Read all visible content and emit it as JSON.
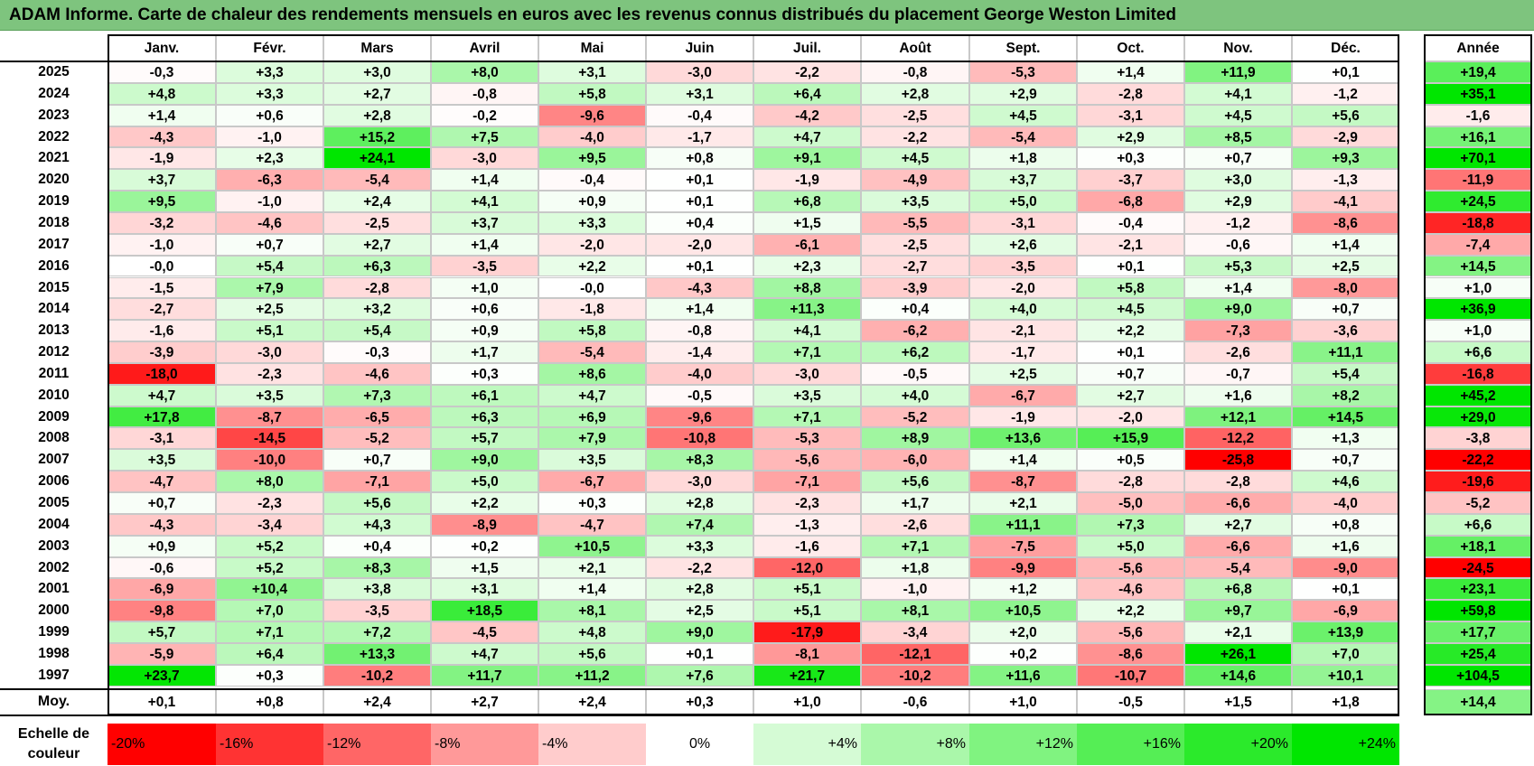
{
  "title": "ADAM Informe. Carte de chaleur des rendements mensuels en euros avec les revenus connus distribués du placement George Weston Limited",
  "colors": {
    "title_bg": "#7ec47e",
    "negative": "#ff0000",
    "positive": "#00e600",
    "neutral": "#ffffff"
  },
  "chart_data": {
    "type": "heatmap",
    "months": [
      "Janv.",
      "Févr.",
      "Mars",
      "Avril",
      "Mai",
      "Juin",
      "Juil.",
      "Août",
      "Sept.",
      "Oct.",
      "Nov.",
      "Déc."
    ],
    "annual_header": "Année",
    "rows": [
      {
        "year": "2025",
        "values": [
          "-0,3",
          "+3,3",
          "+3,0",
          "+8,0",
          "+3,1",
          "-3,0",
          "-2,2",
          "-0,8",
          "-5,3",
          "+1,4",
          "+11,9",
          "+0,1"
        ],
        "annual": "+19,4"
      },
      {
        "year": "2024",
        "values": [
          "+4,8",
          "+3,3",
          "+2,7",
          "-0,8",
          "+5,8",
          "+3,1",
          "+6,4",
          "+2,8",
          "+2,9",
          "-2,8",
          "+4,1",
          "-1,2"
        ],
        "annual": "+35,1"
      },
      {
        "year": "2023",
        "values": [
          "+1,4",
          "+0,6",
          "+2,8",
          "-0,2",
          "-9,6",
          "-0,4",
          "-4,2",
          "-2,5",
          "+4,5",
          "-3,1",
          "+4,5",
          "+5,6"
        ],
        "annual": "-1,6"
      },
      {
        "year": "2022",
        "values": [
          "-4,3",
          "-1,0",
          "+15,2",
          "+7,5",
          "-4,0",
          "-1,7",
          "+4,7",
          "-2,2",
          "-5,4",
          "+2,9",
          "+8,5",
          "-2,9"
        ],
        "annual": "+16,1"
      },
      {
        "year": "2021",
        "values": [
          "-1,9",
          "+2,3",
          "+24,1",
          "-3,0",
          "+9,5",
          "+0,8",
          "+9,1",
          "+4,5",
          "+1,8",
          "+0,3",
          "+0,7",
          "+9,3"
        ],
        "annual": "+70,1"
      },
      {
        "year": "2020",
        "values": [
          "+3,7",
          "-6,3",
          "-5,4",
          "+1,4",
          "-0,4",
          "+0,1",
          "-1,9",
          "-4,9",
          "+3,7",
          "-3,7",
          "+3,0",
          "-1,3"
        ],
        "annual": "-11,9"
      },
      {
        "year": "2019",
        "values": [
          "+9,5",
          "-1,0",
          "+2,4",
          "+4,1",
          "+0,9",
          "+0,1",
          "+6,8",
          "+3,5",
          "+5,0",
          "-6,8",
          "+2,9",
          "-4,1"
        ],
        "annual": "+24,5"
      },
      {
        "year": "2018",
        "values": [
          "-3,2",
          "-4,6",
          "-2,5",
          "+3,7",
          "+3,3",
          "+0,4",
          "+1,5",
          "-5,5",
          "-3,1",
          "-0,4",
          "-1,2",
          "-8,6"
        ],
        "annual": "-18,8"
      },
      {
        "year": "2017",
        "values": [
          "-1,0",
          "+0,7",
          "+2,7",
          "+1,4",
          "-2,0",
          "-2,0",
          "-6,1",
          "-2,5",
          "+2,6",
          "-2,1",
          "-0,6",
          "+1,4"
        ],
        "annual": "-7,4"
      },
      {
        "year": "2016",
        "values": [
          "-0,0",
          "+5,4",
          "+6,3",
          "-3,5",
          "+2,2",
          "+0,1",
          "+2,3",
          "-2,7",
          "-3,5",
          "+0,1",
          "+5,3",
          "+2,5"
        ],
        "annual": "+14,5"
      },
      {
        "year": "2015",
        "values": [
          "-1,5",
          "+7,9",
          "-2,8",
          "+1,0",
          "-0,0",
          "-4,3",
          "+8,8",
          "-3,9",
          "-2,0",
          "+5,8",
          "+1,4",
          "-8,0"
        ],
        "annual": "+1,0"
      },
      {
        "year": "2014",
        "values": [
          "-2,7",
          "+2,5",
          "+3,2",
          "+0,6",
          "-1,8",
          "+1,4",
          "+11,3",
          "+0,4",
          "+4,0",
          "+4,5",
          "+9,0",
          "+0,7"
        ],
        "annual": "+36,9"
      },
      {
        "year": "2013",
        "values": [
          "-1,6",
          "+5,1",
          "+5,4",
          "+0,9",
          "+5,8",
          "-0,8",
          "+4,1",
          "-6,2",
          "-2,1",
          "+2,2",
          "-7,3",
          "-3,6"
        ],
        "annual": "+1,0"
      },
      {
        "year": "2012",
        "values": [
          "-3,9",
          "-3,0",
          "-0,3",
          "+1,7",
          "-5,4",
          "-1,4",
          "+7,1",
          "+6,2",
          "-1,7",
          "+0,1",
          "-2,6",
          "+11,1"
        ],
        "annual": "+6,6"
      },
      {
        "year": "2011",
        "values": [
          "-18,0",
          "-2,3",
          "-4,6",
          "+0,3",
          "+8,6",
          "-4,0",
          "-3,0",
          "-0,5",
          "+2,5",
          "+0,7",
          "-0,7",
          "+5,4"
        ],
        "annual": "-16,8"
      },
      {
        "year": "2010",
        "values": [
          "+4,7",
          "+3,5",
          "+7,3",
          "+6,1",
          "+4,7",
          "-0,5",
          "+3,5",
          "+4,0",
          "-6,7",
          "+2,7",
          "+1,6",
          "+8,2"
        ],
        "annual": "+45,2"
      },
      {
        "year": "2009",
        "values": [
          "+17,8",
          "-8,7",
          "-6,5",
          "+6,3",
          "+6,9",
          "-9,6",
          "+7,1",
          "-5,2",
          "-1,9",
          "-2,0",
          "+12,1",
          "+14,5"
        ],
        "annual": "+29,0"
      },
      {
        "year": "2008",
        "values": [
          "-3,1",
          "-14,5",
          "-5,2",
          "+5,7",
          "+7,9",
          "-10,8",
          "-5,3",
          "+8,9",
          "+13,6",
          "+15,9",
          "-12,2",
          "+1,3"
        ],
        "annual": "-3,8"
      },
      {
        "year": "2007",
        "values": [
          "+3,5",
          "-10,0",
          "+0,7",
          "+9,0",
          "+3,5",
          "+8,3",
          "-5,6",
          "-6,0",
          "+1,4",
          "+0,5",
          "-25,8",
          "+0,7"
        ],
        "annual": "-22,2"
      },
      {
        "year": "2006",
        "values": [
          "-4,7",
          "+8,0",
          "-7,1",
          "+5,0",
          "-6,7",
          "-3,0",
          "-7,1",
          "+5,6",
          "-8,7",
          "-2,8",
          "-2,8",
          "+4,6"
        ],
        "annual": "-19,6"
      },
      {
        "year": "2005",
        "values": [
          "+0,7",
          "-2,3",
          "+5,6",
          "+2,2",
          "+0,3",
          "+2,8",
          "-2,3",
          "+1,7",
          "+2,1",
          "-5,0",
          "-6,6",
          "-4,0"
        ],
        "annual": "-5,2"
      },
      {
        "year": "2004",
        "values": [
          "-4,3",
          "-3,4",
          "+4,3",
          "-8,9",
          "-4,7",
          "+7,4",
          "-1,3",
          "-2,6",
          "+11,1",
          "+7,3",
          "+2,7",
          "+0,8"
        ],
        "annual": "+6,6"
      },
      {
        "year": "2003",
        "values": [
          "+0,9",
          "+5,2",
          "+0,4",
          "+0,2",
          "+10,5",
          "+3,3",
          "-1,6",
          "+7,1",
          "-7,5",
          "+5,0",
          "-6,6",
          "+1,6"
        ],
        "annual": "+18,1"
      },
      {
        "year": "2002",
        "values": [
          "-0,6",
          "+5,2",
          "+8,3",
          "+1,5",
          "+2,1",
          "-2,2",
          "-12,0",
          "+1,8",
          "-9,9",
          "-5,6",
          "-5,4",
          "-9,0"
        ],
        "annual": "-24,5"
      },
      {
        "year": "2001",
        "values": [
          "-6,9",
          "+10,4",
          "+3,8",
          "+3,1",
          "+1,4",
          "+2,8",
          "+5,1",
          "-1,0",
          "+1,2",
          "-4,6",
          "+6,8",
          "+0,1"
        ],
        "annual": "+23,1"
      },
      {
        "year": "2000",
        "values": [
          "-9,8",
          "+7,0",
          "-3,5",
          "+18,5",
          "+8,1",
          "+2,5",
          "+5,1",
          "+8,1",
          "+10,5",
          "+2,2",
          "+9,7",
          "-6,9"
        ],
        "annual": "+59,8"
      },
      {
        "year": "1999",
        "values": [
          "+5,7",
          "+7,1",
          "+7,2",
          "-4,5",
          "+4,8",
          "+9,0",
          "-17,9",
          "-3,4",
          "+2,0",
          "-5,6",
          "+2,1",
          "+13,9"
        ],
        "annual": "+17,7"
      },
      {
        "year": "1998",
        "values": [
          "-5,9",
          "+6,4",
          "+13,3",
          "+4,7",
          "+5,6",
          "+0,1",
          "-8,1",
          "-12,1",
          "+0,2",
          "-8,6",
          "+26,1",
          "+7,0"
        ],
        "annual": "+25,4"
      },
      {
        "year": "1997",
        "values": [
          "+23,7",
          "+0,3",
          "-10,2",
          "+11,7",
          "+11,2",
          "+7,6",
          "+21,7",
          "-10,2",
          "+11,6",
          "-10,7",
          "+14,6",
          "+10,1"
        ],
        "annual": "+104,5"
      }
    ],
    "average": {
      "label": "Moy.",
      "values": [
        "+0,1",
        "+0,8",
        "+2,4",
        "+2,7",
        "+2,4",
        "+0,3",
        "+1,0",
        "-0,6",
        "+1,0",
        "-0,5",
        "+1,5",
        "+1,8"
      ],
      "annual": "+14,4"
    },
    "scale": {
      "label": "Echelle de couleur",
      "steps": [
        "-20%",
        "-16%",
        "-12%",
        "-8%",
        "-4%",
        "0%",
        "+4%",
        "+8%",
        "+12%",
        "+16%",
        "+20%",
        "+24%"
      ]
    }
  }
}
